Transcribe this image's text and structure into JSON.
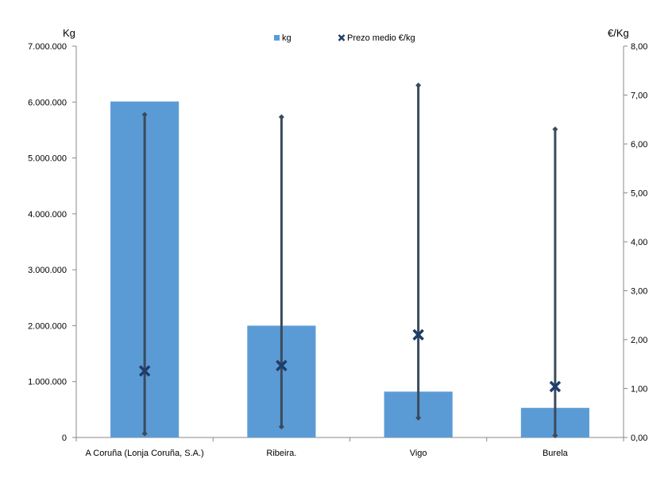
{
  "chart_data": {
    "type": "bar",
    "categories": [
      "A Coruña (Lonja Coruña, S.A.)",
      "Ribeira.",
      "Vigo",
      "Burela"
    ],
    "series": [
      {
        "name": "kg",
        "type": "bar",
        "axis": "left",
        "color": "#5b9bd5",
        "values": [
          6010000,
          2000000,
          820000,
          530000
        ]
      },
      {
        "name": "Prezo medio €/kg",
        "type": "scatter",
        "axis": "right",
        "color": "#1f3d6b",
        "values": [
          1.36,
          1.47,
          2.1,
          1.04
        ],
        "low": [
          0.08,
          0.22,
          0.4,
          0.04
        ],
        "high": [
          6.6,
          6.55,
          7.2,
          6.3
        ]
      }
    ],
    "ylabel": "Kg",
    "y2label": "€/Kg",
    "ylim": [
      0,
      7000000
    ],
    "y2lim": [
      0,
      8
    ],
    "yticks": [
      "0",
      "1.000.000",
      "2.000.000",
      "3.000.000",
      "4.000.000",
      "5.000.000",
      "6.000.000",
      "7.000.000"
    ],
    "y2ticks": [
      "0,00",
      "1,00",
      "2,00",
      "3,00",
      "4,00",
      "5,00",
      "6,00",
      "7,00",
      "8,00"
    ],
    "legend_position": "top-center",
    "grid": false,
    "range_line_color": "#3a4a5c"
  }
}
